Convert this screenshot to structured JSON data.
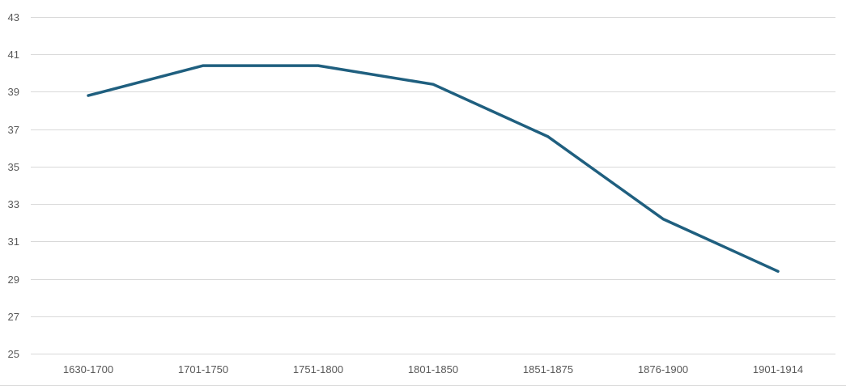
{
  "chart_data": {
    "type": "line",
    "categories": [
      "1630-1700",
      "1701-1750",
      "1751-1800",
      "1801-1850",
      "1851-1875",
      "1876-1900",
      "1901-1914"
    ],
    "series": [
      {
        "values": [
          38.8,
          40.4,
          40.4,
          39.4,
          36.6,
          32.2,
          29.4
        ],
        "color": "#1f5f7f"
      }
    ],
    "ylim": [
      25,
      43
    ],
    "yticks": [
      25,
      27,
      29,
      31,
      33,
      35,
      37,
      39,
      41,
      43
    ],
    "grid": true,
    "legend": "none",
    "title": "",
    "xlabel": "",
    "ylabel": ""
  }
}
